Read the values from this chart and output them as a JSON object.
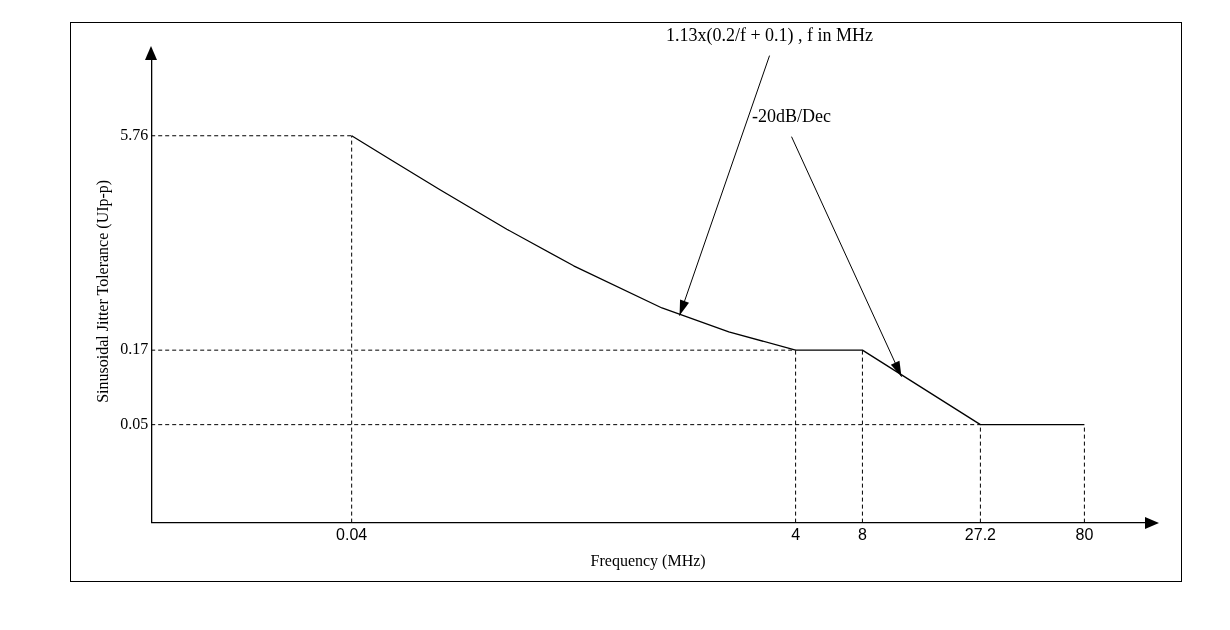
{
  "chart_data": {
    "type": "line",
    "xlabel": "Frequency (MHz)",
    "ylabel": "Sinusoidal Jitter Tolerance (UIp-p)",
    "log": "xy",
    "xlim": [
      0.005,
      150
    ],
    "ylim": [
      0.01,
      20
    ],
    "xticks": [
      0.04,
      4,
      8,
      27.2,
      80
    ],
    "yticks": [
      0.05,
      0.17,
      5.76
    ],
    "grid": false,
    "legend": false,
    "marker": "none",
    "line_style": "solid",
    "series": [
      {
        "color": "#000000",
        "x": [
          0.04,
          0.06,
          0.1,
          0.2,
          0.4,
          1,
          2,
          4,
          8,
          27.2,
          80
        ],
        "values": [
          5.76,
          3.88,
          2.37,
          1.24,
          0.68,
          0.34,
          0.23,
          0.17,
          0.17,
          0.05,
          0.05
        ]
      }
    ],
    "ref_lines": [
      {
        "axis": "y",
        "value": 5.76,
        "line_style": "dashed",
        "color": "#000000"
      },
      {
        "axis": "y",
        "value": 0.17,
        "line_style": "dashed",
        "color": "#000000"
      },
      {
        "axis": "y",
        "value": 0.05,
        "line_style": "dashed",
        "color": "#000000"
      },
      {
        "axis": "x",
        "value": 0.04,
        "line_style": "dashed",
        "color": "#000000"
      },
      {
        "axis": "x",
        "value": 4,
        "line_style": "dashed",
        "color": "#000000"
      },
      {
        "axis": "x",
        "value": 8,
        "line_style": "dashed",
        "color": "#000000"
      },
      {
        "axis": "x",
        "value": 27.2,
        "line_style": "dashed",
        "color": "#000000"
      },
      {
        "axis": "x",
        "value": 80,
        "line_style": "dashed",
        "color": "#000000"
      }
    ],
    "annotations": [
      {
        "text": "1.13x(0.2/f + 0.1) , f in MHz",
        "x": 1.2,
        "y": 0.3
      },
      {
        "text": "-20dB/Dec",
        "x": 12,
        "y": 0.11
      }
    ]
  }
}
